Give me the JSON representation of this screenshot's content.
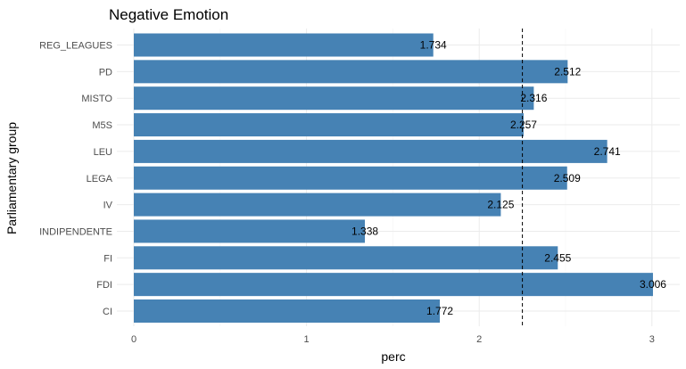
{
  "chart_data": {
    "type": "bar",
    "orientation": "horizontal",
    "title": "Negative Emotion",
    "xlabel": "perc",
    "ylabel": "Parliamentary group",
    "categories": [
      "REG_LEAGUES",
      "PD",
      "MISTO",
      "M5S",
      "LEU",
      "LEGA",
      "IV",
      "INDIPENDENTE",
      "FI",
      "FDI",
      "CI"
    ],
    "values": [
      1.734,
      2.512,
      2.316,
      2.257,
      2.741,
      2.509,
      2.125,
      1.338,
      2.455,
      3.006,
      1.772
    ],
    "value_labels": [
      "1.734",
      "2.512",
      "2.316",
      "2.257",
      "2.741",
      "2.509",
      "2.125",
      "1.338",
      "2.455",
      "3.006",
      "1.772"
    ],
    "xlim": [
      0,
      3.1
    ],
    "xticks": [
      0,
      1,
      2,
      3
    ],
    "xtick_labels": [
      "0",
      "1",
      "2",
      "3"
    ],
    "reference_line": {
      "x": 2.25,
      "style": "dashed"
    },
    "bar_color": "#4682B4",
    "grid": true,
    "legend": "none"
  }
}
